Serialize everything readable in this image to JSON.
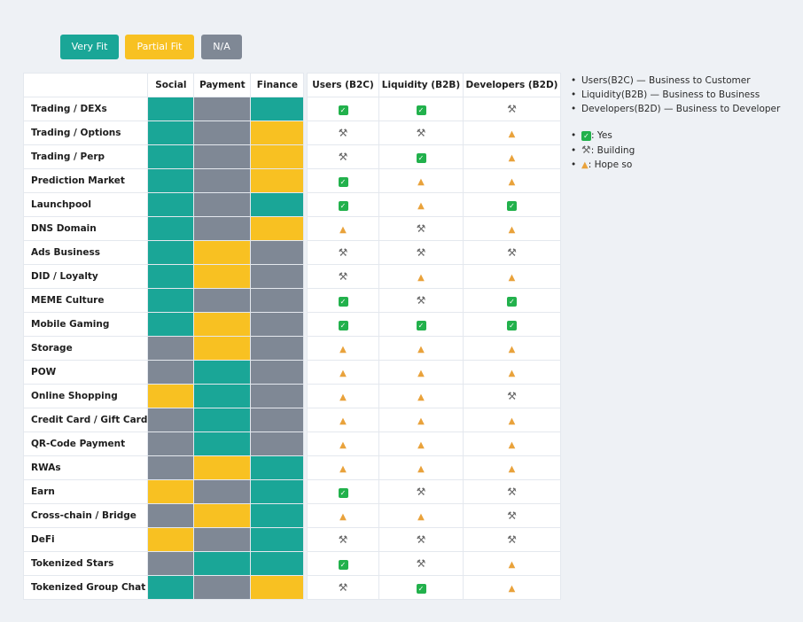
{
  "legend": {
    "very_fit": {
      "label": "Very Fit",
      "color": "#1aa697"
    },
    "partial_fit": {
      "label": "Partial Fit",
      "color": "#f8c122"
    },
    "na": {
      "label": "N/A",
      "color": "#7f8895"
    }
  },
  "fit_table": {
    "headers": [
      "Social",
      "Payment",
      "Finance"
    ],
    "rows": [
      {
        "label": "Trading / DEXs",
        "cells": [
          "V",
          "N",
          "V"
        ]
      },
      {
        "label": "Trading / Options",
        "cells": [
          "V",
          "N",
          "P"
        ]
      },
      {
        "label": "Trading / Perp",
        "cells": [
          "V",
          "N",
          "P"
        ]
      },
      {
        "label": "Prediction Market",
        "cells": [
          "V",
          "N",
          "P"
        ]
      },
      {
        "label": "Launchpool",
        "cells": [
          "V",
          "N",
          "V"
        ]
      },
      {
        "label": "DNS Domain",
        "cells": [
          "V",
          "N",
          "P"
        ]
      },
      {
        "label": "Ads Business",
        "cells": [
          "V",
          "P",
          "N"
        ]
      },
      {
        "label": "DID / Loyalty",
        "cells": [
          "V",
          "P",
          "N"
        ]
      },
      {
        "label": "MEME Culture",
        "cells": [
          "V",
          "N",
          "N"
        ]
      },
      {
        "label": "Mobile Gaming",
        "cells": [
          "V",
          "P",
          "N"
        ]
      },
      {
        "label": "Storage",
        "cells": [
          "N",
          "P",
          "N"
        ]
      },
      {
        "label": "POW",
        "cells": [
          "N",
          "V",
          "N"
        ]
      },
      {
        "label": "Online Shopping",
        "cells": [
          "P",
          "V",
          "N"
        ]
      },
      {
        "label": "Credit Card / Gift Card",
        "cells": [
          "N",
          "V",
          "N"
        ]
      },
      {
        "label": "QR-Code Payment",
        "cells": [
          "N",
          "V",
          "N"
        ]
      },
      {
        "label": "RWAs",
        "cells": [
          "N",
          "P",
          "V"
        ]
      },
      {
        "label": "Earn",
        "cells": [
          "P",
          "N",
          "V"
        ]
      },
      {
        "label": "Cross-chain / Bridge",
        "cells": [
          "N",
          "P",
          "V"
        ]
      },
      {
        "label": "DeFi",
        "cells": [
          "P",
          "N",
          "V"
        ]
      },
      {
        "label": "Tokenized Stars",
        "cells": [
          "N",
          "V",
          "V"
        ]
      },
      {
        "label": "Tokenized Group Chat",
        "cells": [
          "V",
          "N",
          "P"
        ]
      }
    ]
  },
  "status_table": {
    "headers": [
      "Users (B2C)",
      "Liquidity (B2B)",
      "Developers (B2D)"
    ],
    "rows": [
      [
        "Y",
        "Y",
        "B"
      ],
      [
        "B",
        "B",
        "H"
      ],
      [
        "B",
        "Y",
        "H"
      ],
      [
        "Y",
        "H",
        "H"
      ],
      [
        "Y",
        "H",
        "Y"
      ],
      [
        "H",
        "B",
        "H"
      ],
      [
        "B",
        "B",
        "B"
      ],
      [
        "B",
        "H",
        "H"
      ],
      [
        "Y",
        "B",
        "Y"
      ],
      [
        "Y",
        "Y",
        "Y"
      ],
      [
        "H",
        "H",
        "H"
      ],
      [
        "H",
        "H",
        "H"
      ],
      [
        "H",
        "H",
        "B"
      ],
      [
        "H",
        "H",
        "H"
      ],
      [
        "H",
        "H",
        "H"
      ],
      [
        "H",
        "H",
        "H"
      ],
      [
        "Y",
        "B",
        "B"
      ],
      [
        "H",
        "H",
        "B"
      ],
      [
        "B",
        "B",
        "B"
      ],
      [
        "Y",
        "B",
        "H"
      ],
      [
        "B",
        "Y",
        "H"
      ]
    ]
  },
  "notes": [
    "Users(B2C) — Business to Customer",
    "Liquidity(B2B) — Business to Business",
    "Developers(B2D) — Business to Developer"
  ],
  "status_legend": [
    {
      "icon": "Y",
      "label": ": Yes"
    },
    {
      "icon": "B",
      "label": ": Building"
    },
    {
      "icon": "H",
      "label": ": Hope so"
    }
  ]
}
